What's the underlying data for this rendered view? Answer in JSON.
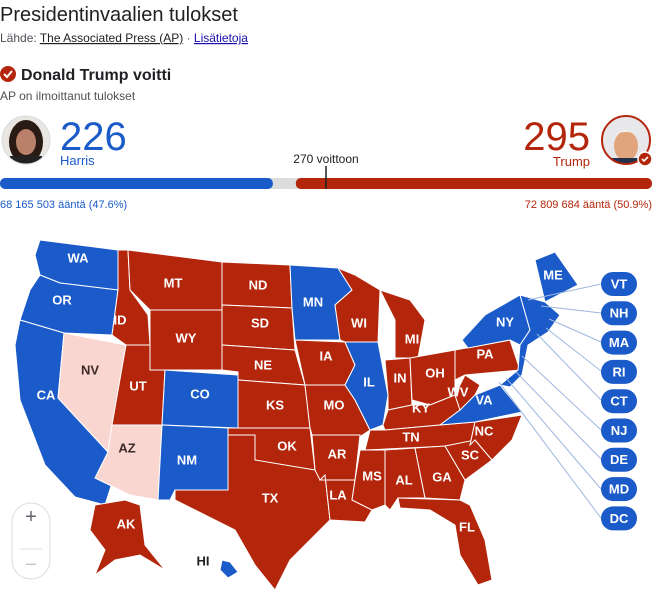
{
  "header": {
    "title": "Presidentinvaalien tulokset",
    "source_prefix": "Lähde:",
    "source_link": "The Associated Press (AP)",
    "separator": "·",
    "more_link": "Lisätietoja"
  },
  "result": {
    "headline": "Donald Trump voitti",
    "note": "AP on ilmoittanut tulokset"
  },
  "candidates": [
    {
      "name": "Harris",
      "electoral_votes": 226,
      "popular_votes": "68 165 503 ääntä (47.6%)",
      "color": "#1a5bc9"
    },
    {
      "name": "Trump",
      "electoral_votes": 295,
      "popular_votes": "72 809 684 ääntä (50.9%)",
      "color": "#b3260b"
    }
  ],
  "threshold": {
    "value": 270,
    "label": "270 voittoon"
  },
  "map": {
    "states": [
      "WA",
      "OR",
      "CA",
      "NV",
      "ID",
      "MT",
      "WY",
      "UT",
      "CO",
      "AZ",
      "NM",
      "ND",
      "SD",
      "NE",
      "KS",
      "OK",
      "TX",
      "MN",
      "IA",
      "MO",
      "AR",
      "LA",
      "WI",
      "IL",
      "MI",
      "IN",
      "OH",
      "KY",
      "TN",
      "MS",
      "AL",
      "GA",
      "FL",
      "SC",
      "NC",
      "VA",
      "WV",
      "PA",
      "NY",
      "ME",
      "AK",
      "HI"
    ],
    "callouts": [
      "VT",
      "NH",
      "MA",
      "RI",
      "CT",
      "NJ",
      "DE",
      "MD",
      "DC"
    ]
  },
  "zoom": {
    "in": "+",
    "out": "−"
  }
}
